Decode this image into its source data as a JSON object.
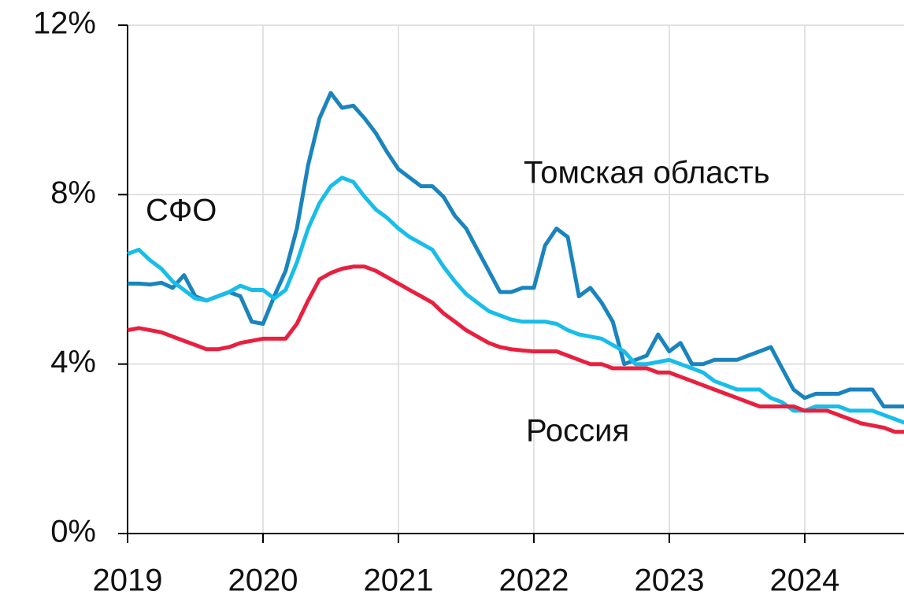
{
  "chart_data": {
    "type": "line",
    "x": [
      2019,
      2019.083,
      2019.167,
      2019.25,
      2019.333,
      2019.417,
      2019.5,
      2019.583,
      2019.667,
      2019.75,
      2019.833,
      2019.917,
      2020,
      2020.083,
      2020.167,
      2020.25,
      2020.333,
      2020.417,
      2020.5,
      2020.583,
      2020.667,
      2020.75,
      2020.833,
      2020.917,
      2021,
      2021.083,
      2021.167,
      2021.25,
      2021.333,
      2021.417,
      2021.5,
      2021.583,
      2021.667,
      2021.75,
      2021.833,
      2021.917,
      2022,
      2022.083,
      2022.167,
      2022.25,
      2022.333,
      2022.417,
      2022.5,
      2022.583,
      2022.667,
      2022.75,
      2022.833,
      2022.917,
      2023,
      2023.083,
      2023.167,
      2023.25,
      2023.333,
      2023.417,
      2023.5,
      2023.583,
      2023.667,
      2023.75,
      2023.833,
      2023.917,
      2024,
      2024.083,
      2024.167,
      2024.25,
      2024.333,
      2024.417,
      2024.5,
      2024.583,
      2024.667,
      2024.75
    ],
    "series": [
      {
        "name": "Томская область",
        "color": "#1a84bd",
        "values": [
          5.9,
          5.9,
          5.88,
          5.92,
          5.8,
          6.1,
          5.6,
          5.5,
          5.6,
          5.7,
          5.6,
          5.0,
          4.95,
          5.6,
          6.2,
          7.2,
          8.7,
          9.8,
          10.4,
          10.05,
          10.1,
          9.8,
          9.45,
          9.0,
          8.6,
          8.4,
          8.2,
          8.2,
          7.95,
          7.5,
          7.2,
          6.7,
          6.2,
          5.7,
          5.7,
          5.8,
          5.8,
          6.8,
          7.2,
          7.0,
          5.6,
          5.8,
          5.45,
          5.0,
          4.0,
          4.1,
          4.2,
          4.7,
          4.3,
          4.5,
          4.0,
          4.0,
          4.1,
          4.1,
          4.1,
          4.2,
          4.3,
          4.4,
          3.9,
          3.4,
          3.2,
          3.3,
          3.3,
          3.3,
          3.4,
          3.4,
          3.4,
          3.0,
          3.0,
          3.0
        ]
      },
      {
        "name": "СФО",
        "color": "#19bde9",
        "values": [
          6.6,
          6.7,
          6.45,
          6.25,
          5.95,
          5.75,
          5.55,
          5.5,
          5.6,
          5.7,
          5.85,
          5.75,
          5.75,
          5.55,
          5.75,
          6.4,
          7.2,
          7.8,
          8.2,
          8.4,
          8.3,
          7.95,
          7.65,
          7.45,
          7.2,
          7.0,
          6.85,
          6.7,
          6.3,
          5.95,
          5.65,
          5.45,
          5.25,
          5.15,
          5.05,
          5.0,
          5.0,
          5.0,
          4.95,
          4.8,
          4.7,
          4.65,
          4.6,
          4.45,
          4.3,
          4.0,
          4.0,
          4.05,
          4.1,
          4.0,
          3.9,
          3.8,
          3.6,
          3.5,
          3.4,
          3.4,
          3.4,
          3.2,
          3.1,
          2.9,
          2.9,
          3.0,
          3.0,
          3.0,
          2.9,
          2.9,
          2.9,
          2.8,
          2.7,
          2.6
        ]
      },
      {
        "name": "Россия",
        "color": "#e8203f",
        "values": [
          4.8,
          4.85,
          4.8,
          4.75,
          4.65,
          4.55,
          4.45,
          4.35,
          4.35,
          4.4,
          4.5,
          4.55,
          4.6,
          4.6,
          4.6,
          4.95,
          5.5,
          6.0,
          6.15,
          6.25,
          6.3,
          6.3,
          6.2,
          6.05,
          5.9,
          5.75,
          5.6,
          5.45,
          5.2,
          5.0,
          4.8,
          4.65,
          4.5,
          4.4,
          4.35,
          4.32,
          4.3,
          4.3,
          4.3,
          4.2,
          4.1,
          4.0,
          4.0,
          3.9,
          3.9,
          3.9,
          3.9,
          3.8,
          3.8,
          3.7,
          3.6,
          3.5,
          3.4,
          3.3,
          3.2,
          3.1,
          3.0,
          3.0,
          3.0,
          3.0,
          2.9,
          2.9,
          2.9,
          2.8,
          2.7,
          2.6,
          2.55,
          2.5,
          2.4,
          2.4
        ]
      }
    ],
    "xlim": [
      2019,
      2024.733
    ],
    "xticks": [
      2019,
      2020,
      2021,
      2022,
      2023,
      2024
    ],
    "ylim": [
      0,
      12
    ],
    "yticks": [
      {
        "value": 0,
        "label": "0%"
      },
      {
        "value": 4,
        "label": "4%"
      },
      {
        "value": 8,
        "label": "8%"
      },
      {
        "value": 12,
        "label": "12%"
      }
    ],
    "grid": true
  }
}
